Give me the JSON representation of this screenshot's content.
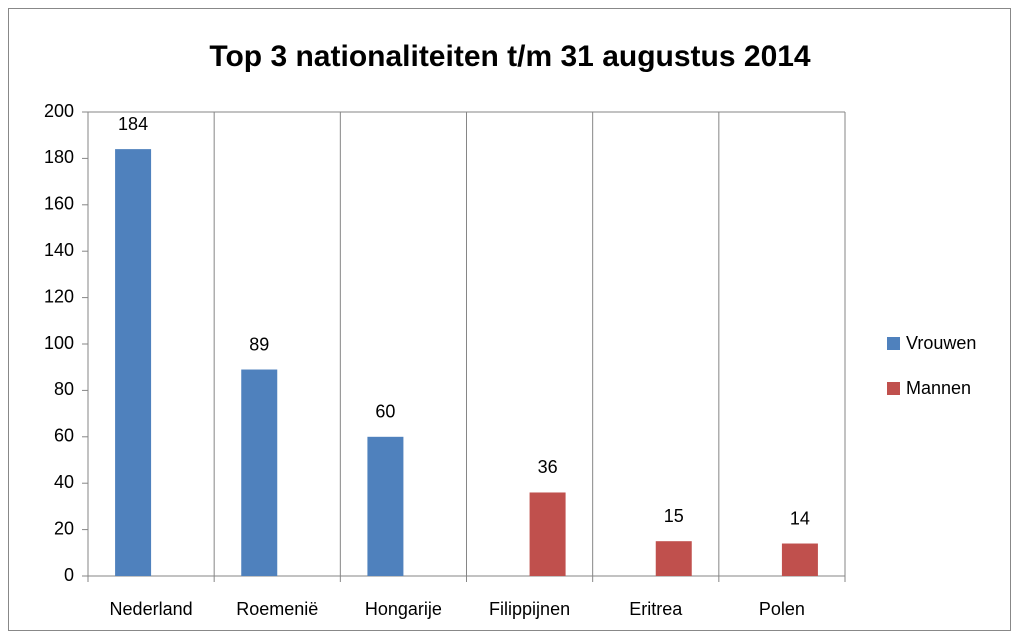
{
  "chart_data": {
    "type": "bar",
    "title": "Top 3 nationaliteiten t/m 31 augustus 2014",
    "categories": [
      "Nederland",
      "Roemenië",
      "Hongarije",
      "Filippijnen",
      "Eritrea",
      "Polen"
    ],
    "series": [
      {
        "name": "Vrouwen",
        "color": "#4f81bd",
        "values": [
          184,
          89,
          60,
          null,
          null,
          null
        ]
      },
      {
        "name": "Mannen",
        "color": "#c0504d",
        "values": [
          null,
          null,
          null,
          36,
          15,
          14
        ]
      }
    ],
    "ylim": [
      0,
      200
    ],
    "yticks": [
      0,
      20,
      40,
      60,
      80,
      100,
      120,
      140,
      160,
      180,
      200
    ],
    "grid": true,
    "legend": "right",
    "data_labels": true
  }
}
